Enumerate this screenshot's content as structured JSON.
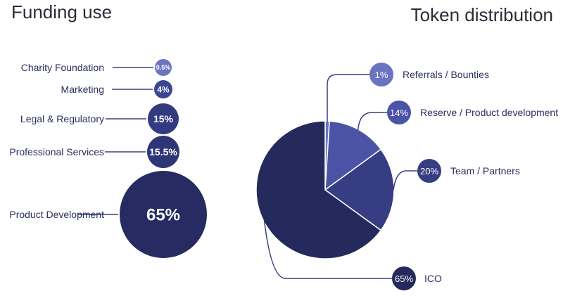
{
  "chart_data": [
    {
      "type": "bubble",
      "title": "Funding use",
      "categories": [
        "Charity Foundation",
        "Marketing",
        "Legal & Regulatory",
        "Professional Services",
        "Product Development"
      ],
      "values": [
        0.5,
        4,
        15,
        15.5,
        65
      ],
      "labels": [
        "0.5%",
        "4%",
        "15%",
        "15.5%",
        "65%"
      ],
      "colors": [
        "#6b74c2",
        "#3d4590",
        "#323a80",
        "#2f3678",
        "#262b62"
      ]
    },
    {
      "type": "pie",
      "title": "Token distribution",
      "categories": [
        "Referrals / Bounties",
        "Reserve / Product development",
        "Team / Partners",
        "ICO"
      ],
      "values": [
        1,
        14,
        20,
        65
      ],
      "labels": [
        "1%",
        "14%",
        "20%",
        "65%"
      ],
      "colors": [
        "#6b74c2",
        "#4a53a6",
        "#363d82",
        "#252a5c"
      ]
    }
  ]
}
